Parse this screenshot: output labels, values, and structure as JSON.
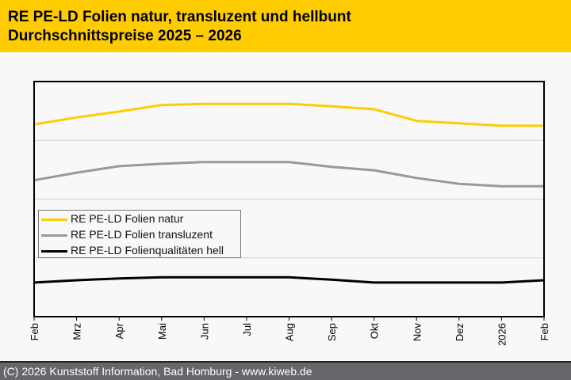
{
  "header": {
    "title_line1": "RE PE-LD Folien natur, transluzent und hellbunt",
    "title_line2": "Durchschnittspreise 2025 – 2026"
  },
  "footer": {
    "text": "(C) 2026 Kunststoff Information, Bad Homburg - www.kiweb.de"
  },
  "colors": {
    "header_bg": "#ffcc00",
    "footer_bg": "#66676b",
    "natur": "#ffcc00",
    "transluzent": "#999999",
    "hell": "#000000"
  },
  "chart_data": {
    "type": "line",
    "title": "RE PE-LD Folien natur, transluzent und hellbunt – Durchschnittspreise 2025 – 2026",
    "xlabel": "",
    "ylabel": "",
    "y_note": "no y-axis tick labels shown; values are relative positions in gridline bands (0 = bottom, 4 = top)",
    "ylim": [
      0,
      4
    ],
    "grid": true,
    "legend_position": "center-left",
    "categories": [
      "Feb",
      "Mrz",
      "Apr",
      "Mai",
      "Jun",
      "Jul",
      "Aug",
      "Sep",
      "Okt",
      "Nov",
      "Dez",
      "2026",
      "Feb"
    ],
    "series": [
      {
        "name": "RE PE-LD Folien natur",
        "color": "#ffcc00",
        "values": [
          3.27,
          3.39,
          3.49,
          3.6,
          3.62,
          3.62,
          3.62,
          3.58,
          3.53,
          3.33,
          3.29,
          3.25,
          3.25
        ]
      },
      {
        "name": "RE PE-LD Folien transluzent",
        "color": "#999999",
        "values": [
          2.32,
          2.45,
          2.56,
          2.6,
          2.63,
          2.63,
          2.63,
          2.55,
          2.49,
          2.36,
          2.26,
          2.22,
          2.22
        ]
      },
      {
        "name": "RE PE-LD Folienqualitäten hell",
        "color": "#000000",
        "values": [
          0.58,
          0.62,
          0.65,
          0.67,
          0.67,
          0.67,
          0.67,
          0.63,
          0.58,
          0.58,
          0.58,
          0.58,
          0.62
        ]
      }
    ]
  }
}
